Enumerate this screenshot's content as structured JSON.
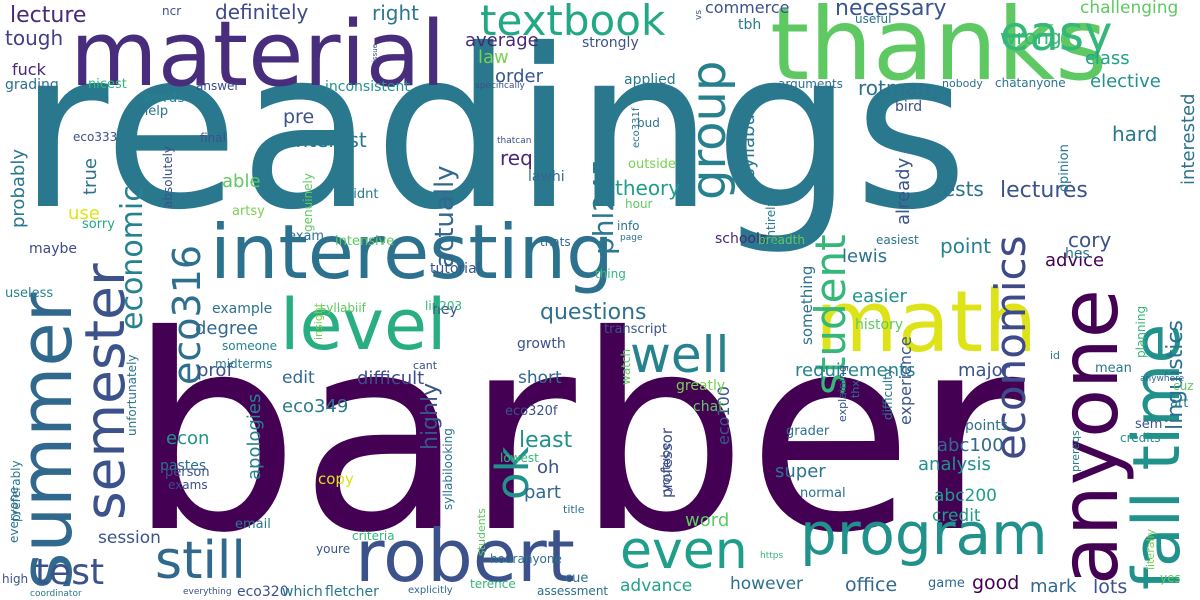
{
  "words": [
    {
      "text": "barber",
      "color": "#440154"
    },
    {
      "text": "readings",
      "color": "#2a788e"
    },
    {
      "text": "thanks",
      "color": "#5ec962"
    },
    {
      "text": "material",
      "color": "#472d7b"
    },
    {
      "text": "interesting",
      "color": "#2c728e"
    },
    {
      "text": "math",
      "color": "#dde318"
    },
    {
      "text": "summer",
      "color": "#31688e"
    },
    {
      "text": "anyone",
      "color": "#440154"
    },
    {
      "text": "robert",
      "color": "#3b528b"
    },
    {
      "text": "fall time",
      "color": "#21918c"
    },
    {
      "text": "level",
      "color": "#28ae80"
    },
    {
      "text": "program",
      "color": "#21918c"
    },
    {
      "text": "semester",
      "color": "#3b528b"
    },
    {
      "text": "still",
      "color": "#31688e"
    },
    {
      "text": "even",
      "color": "#1f9e89"
    },
    {
      "text": "well",
      "color": "#26828e"
    },
    {
      "text": "textbook",
      "color": "#22a884"
    },
    {
      "text": "easy",
      "color": "#35b779"
    },
    {
      "text": "group",
      "color": "#27808e"
    },
    {
      "text": "economics",
      "color": "#3e4a89"
    },
    {
      "text": "student",
      "color": "#35b779"
    },
    {
      "text": "eco316",
      "color": "#2d708e"
    },
    {
      "text": "economic",
      "color": "#26828e"
    },
    {
      "text": "ok",
      "color": "#21918c"
    },
    {
      "text": "phl245",
      "color": "#2a788e"
    },
    {
      "text": "test",
      "color": "#3b528b"
    },
    {
      "text": "linguistics",
      "color": "#2d708e"
    },
    {
      "text": "lecture",
      "color": "#482878"
    },
    {
      "text": "definitely",
      "color": "#3e4a89"
    },
    {
      "text": "right",
      "color": "#2a788e"
    },
    {
      "text": "necessary",
      "color": "#39568c"
    },
    {
      "text": "commerce",
      "color": "#3b528b"
    },
    {
      "text": "challenging",
      "color": "#5ec962"
    },
    {
      "text": "tough",
      "color": "#433e85"
    },
    {
      "text": "wrong",
      "color": "#35b779"
    },
    {
      "text": "class",
      "color": "#20a386"
    },
    {
      "text": "elective",
      "color": "#21918c"
    },
    {
      "text": "rotman",
      "color": "#2c728e"
    },
    {
      "text": "interested",
      "color": "#2c728e"
    },
    {
      "text": "syllabus",
      "color": "#2a788e"
    },
    {
      "text": "average",
      "color": "#482878"
    },
    {
      "text": "law",
      "color": "#7ad151"
    },
    {
      "text": "order",
      "color": "#39568c"
    },
    {
      "text": "actually",
      "color": "#31688e"
    },
    {
      "text": "req",
      "color": "#482878"
    },
    {
      "text": "theory",
      "color": "#1f9e89"
    },
    {
      "text": "interest",
      "color": "#2a788e"
    },
    {
      "text": "hard",
      "color": "#2a788e"
    },
    {
      "text": "lectures",
      "color": "#3b528b"
    },
    {
      "text": "tests",
      "color": "#2c728e"
    },
    {
      "text": "already",
      "color": "#39568c"
    },
    {
      "text": "probably",
      "color": "#2a788e"
    },
    {
      "text": "true",
      "color": "#2d708e"
    },
    {
      "text": "able",
      "color": "#5ec962"
    },
    {
      "text": "use",
      "color": "#dde318"
    },
    {
      "text": "point",
      "color": "#26828e"
    },
    {
      "text": "cory",
      "color": "#3b528b"
    },
    {
      "text": "advice",
      "color": "#440154"
    },
    {
      "text": "lewis",
      "color": "#2c728e"
    },
    {
      "text": "easier",
      "color": "#21918c"
    },
    {
      "text": "history",
      "color": "#5ec962"
    },
    {
      "text": "questions",
      "color": "#2c728e"
    },
    {
      "text": "degree",
      "color": "#31688e"
    },
    {
      "text": "prof",
      "color": "#3b528b"
    },
    {
      "text": "edit",
      "color": "#31688e"
    },
    {
      "text": "difficult",
      "color": "#3e4a89"
    },
    {
      "text": "short",
      "color": "#31688e"
    },
    {
      "text": "requirements",
      "color": "#26828e"
    },
    {
      "text": "major",
      "color": "#3b528b"
    },
    {
      "text": "highly",
      "color": "#3b528b"
    },
    {
      "text": "least",
      "color": "#21918c"
    },
    {
      "text": "oh",
      "color": "#3b528b"
    },
    {
      "text": "part",
      "color": "#31688e"
    },
    {
      "text": "super",
      "color": "#2c728e"
    },
    {
      "text": "analysis",
      "color": "#21918c"
    },
    {
      "text": "experience",
      "color": "#39568c"
    },
    {
      "text": "abc100",
      "color": "#31688e"
    },
    {
      "text": "abc200",
      "color": "#1f9e89"
    },
    {
      "text": "credit",
      "color": "#1f9e89"
    },
    {
      "text": "eco349",
      "color": "#2a788e"
    },
    {
      "text": "apologies",
      "color": "#26828e"
    },
    {
      "text": "econ",
      "color": "#21918c"
    },
    {
      "text": "pastes",
      "color": "#2d708e"
    },
    {
      "text": "copy",
      "color": "#dde318"
    },
    {
      "text": "professor",
      "color": "#3e4a89"
    },
    {
      "text": "eco100",
      "color": "#39568c"
    },
    {
      "text": "word",
      "color": "#5ec962"
    },
    {
      "text": "session",
      "color": "#3b528b"
    },
    {
      "text": "advance",
      "color": "#20a386"
    },
    {
      "text": "however",
      "color": "#2d708e"
    },
    {
      "text": "office",
      "color": "#31688e"
    },
    {
      "text": "good",
      "color": "#440154"
    },
    {
      "text": "mark",
      "color": "#31688e"
    },
    {
      "text": "lots",
      "color": "#3b528b"
    },
    {
      "text": "tutorial",
      "color": "#39568c"
    },
    {
      "text": "schools",
      "color": "#482878"
    },
    {
      "text": "something",
      "color": "#2c728e"
    },
    {
      "text": "greatly",
      "color": "#7ad151"
    },
    {
      "text": "chat",
      "color": "#5ec962"
    },
    {
      "text": "grader",
      "color": "#2d708e"
    },
    {
      "text": "difficulty",
      "color": "#2a788e"
    },
    {
      "text": "points",
      "color": "#2d708e"
    },
    {
      "text": "credits",
      "color": "#21918c"
    },
    {
      "text": "sem",
      "color": "#3b528b"
    },
    {
      "text": "art",
      "color": "#2a788e"
    },
    {
      "text": "cuz",
      "color": "#5ec962"
    },
    {
      "text": "mean",
      "color": "#2a788e"
    },
    {
      "text": "planning",
      "color": "#35b779"
    },
    {
      "text": "opinion",
      "color": "#2a788e"
    },
    {
      "text": "hes",
      "color": "#2a788e"
    },
    {
      "text": "fuck",
      "color": "#482878"
    },
    {
      "text": "grading",
      "color": "#2d708e"
    },
    {
      "text": "nicest",
      "color": "#35b779"
    },
    {
      "text": "inconsistent",
      "color": "#21918c"
    },
    {
      "text": "pre",
      "color": "#3b528b"
    },
    {
      "text": "words",
      "color": "#26828e"
    },
    {
      "text": "help",
      "color": "#2c728e"
    },
    {
      "text": "eco333",
      "color": "#3b528b"
    },
    {
      "text": "final",
      "color": "#3b528b"
    },
    {
      "text": "absolutely",
      "color": "#3b528b"
    },
    {
      "text": "artsy",
      "color": "#7ad151"
    },
    {
      "text": "genuinely",
      "color": "#5ec962"
    },
    {
      "text": "didnt",
      "color": "#2a788e"
    },
    {
      "text": "sorry",
      "color": "#22a884"
    },
    {
      "text": "exam",
      "color": "#2c728e"
    },
    {
      "text": "intensive",
      "color": "#5ec962"
    },
    {
      "text": "maybe",
      "color": "#3e4a89"
    },
    {
      "text": "useless",
      "color": "#26828e"
    },
    {
      "text": "hey",
      "color": "#3e4a89"
    },
    {
      "text": "syllabiif",
      "color": "#5ec962"
    },
    {
      "text": "insight",
      "color": "#7ad151"
    },
    {
      "text": "lin203",
      "color": "#35b779"
    },
    {
      "text": "example",
      "color": "#2c728e"
    },
    {
      "text": "someone",
      "color": "#26828e"
    },
    {
      "text": "midterms",
      "color": "#2a788e"
    },
    {
      "text": "transcript",
      "color": "#3b528b"
    },
    {
      "text": "growth",
      "color": "#3b528b"
    },
    {
      "text": "unfortunately",
      "color": "#2c728e"
    },
    {
      "text": "preferably",
      "color": "#2a788e"
    },
    {
      "text": "everyone",
      "color": "#2d708e"
    },
    {
      "text": "lawhi",
      "color": "#31688e"
    },
    {
      "text": "thatcan",
      "color": "#3b528b"
    },
    {
      "text": "outside",
      "color": "#7ad151"
    },
    {
      "text": "hour",
      "color": "#5ec962"
    },
    {
      "text": "info",
      "color": "#2c728e"
    },
    {
      "text": "page",
      "color": "#2d708e"
    },
    {
      "text": "thats",
      "color": "#31688e"
    },
    {
      "text": "thing",
      "color": "#35b779"
    },
    {
      "text": "watch",
      "color": "#5ec962"
    },
    {
      "text": "cant",
      "color": "#3b528b"
    },
    {
      "text": "eco320f",
      "color": "#3b528b"
    },
    {
      "text": "lowest",
      "color": "#35b779"
    },
    {
      "text": "youtube",
      "color": "#3b528b"
    },
    {
      "text": "syllabilooking",
      "color": "#2c728e"
    },
    {
      "text": "students",
      "color": "#5ec962"
    },
    {
      "text": "title",
      "color": "#2d708e"
    },
    {
      "text": "criteria",
      "color": "#35b779"
    },
    {
      "text": "youre",
      "color": "#3b528b"
    },
    {
      "text": "email",
      "color": "#2a788e"
    },
    {
      "text": "person",
      "color": "#3b528b"
    },
    {
      "text": "exams",
      "color": "#3e4a89"
    },
    {
      "text": "houranyone",
      "color": "#2d708e"
    },
    {
      "text": "normal",
      "color": "#2d708e"
    },
    {
      "text": "eco320",
      "color": "#3b528b"
    },
    {
      "text": "which",
      "color": "#2c728e"
    },
    {
      "text": "fletcher",
      "color": "#2a788e"
    },
    {
      "text": "explicitly",
      "color": "#31688e"
    },
    {
      "text": "terence",
      "color": "#35b779"
    },
    {
      "text": "assessment",
      "color": "#2d708e"
    },
    {
      "text": "everything",
      "color": "#3b528b"
    },
    {
      "text": "coordinator",
      "color": "#2a788e"
    },
    {
      "text": "high",
      "color": "#3b528b"
    },
    {
      "text": "https",
      "color": "#35b779"
    },
    {
      "text": "cue",
      "color": "#2c728e"
    },
    {
      "text": "game",
      "color": "#31688e"
    },
    {
      "text": "literally",
      "color": "#7ad151"
    },
    {
      "text": "yes",
      "color": "#5ec962"
    },
    {
      "text": "anywhere",
      "color": "#31688e"
    },
    {
      "text": "id",
      "color": "#2a788e"
    },
    {
      "text": "prereqs",
      "color": "#2a788e"
    },
    {
      "text": "thx",
      "color": "#2d708e"
    },
    {
      "text": "explaining",
      "color": "#3b528b"
    },
    {
      "text": "breadth",
      "color": "#5ec962"
    },
    {
      "text": "easiest",
      "color": "#2c728e"
    },
    {
      "text": "entirely",
      "color": "#2a788e"
    },
    {
      "text": "bud",
      "color": "#2c728e"
    },
    {
      "text": "eco331f",
      "color": "#2c728e"
    },
    {
      "text": "applied",
      "color": "#2a788e"
    },
    {
      "text": "strongly",
      "color": "#3b528b"
    },
    {
      "text": "vs",
      "color": "#3b528b"
    },
    {
      "text": "tbh",
      "color": "#2a788e"
    },
    {
      "text": "useful",
      "color": "#2d708e"
    },
    {
      "text": "arguments",
      "color": "#2d708e"
    },
    {
      "text": "bird",
      "color": "#3b528b"
    },
    {
      "text": "nobody",
      "color": "#2d708e"
    },
    {
      "text": "chatanyone",
      "color": "#2c728e"
    },
    {
      "text": "specifically",
      "color": "#3b528b"
    },
    {
      "text": "answer",
      "color": "#3e4a89"
    },
    {
      "text": "issue",
      "color": "#3b528b"
    },
    {
      "text": "ncr",
      "color": "#3b528b"
    }
  ]
}
